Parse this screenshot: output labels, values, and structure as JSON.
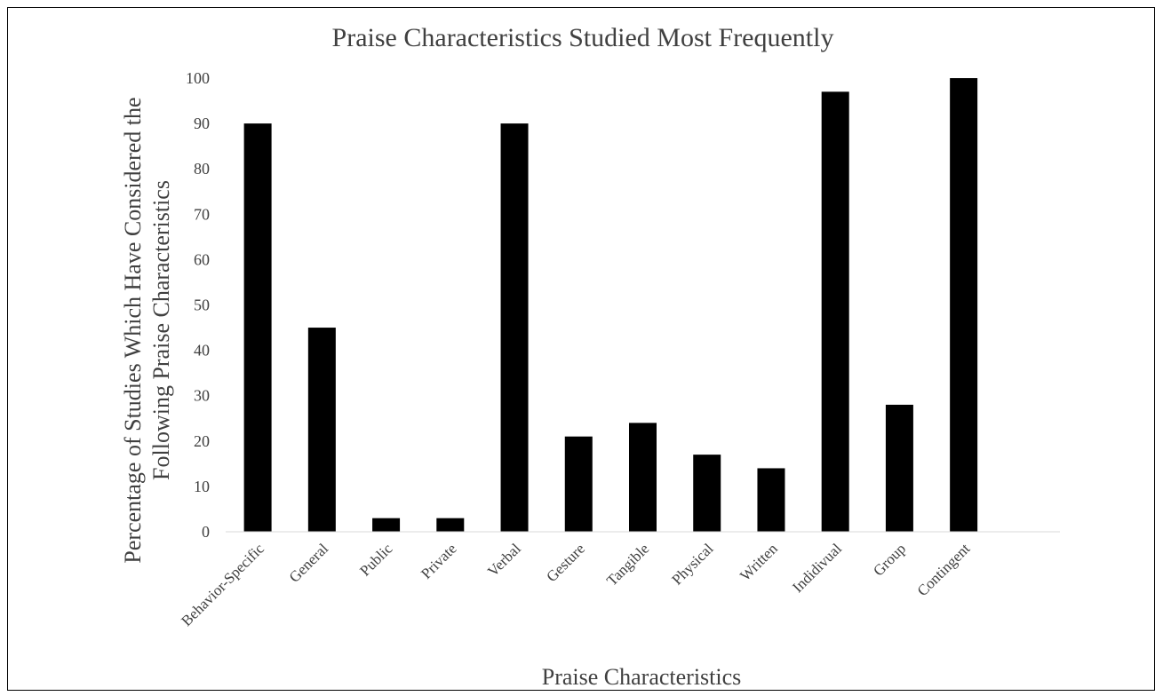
{
  "chart_data": {
    "type": "bar",
    "title": "Praise Characteristics Studied Most Frequently",
    "xlabel": "Praise Characteristics",
    "ylabel_lines": [
      "Percentage of Studies Which Have Considered  the",
      "Following Praise Characteristics"
    ],
    "categories": [
      "Behavior-Specific",
      "General",
      "Public",
      "Private",
      "Verbal",
      "Gesture",
      "Tangible",
      "Physical",
      "Written",
      "Indidivual",
      "Group",
      "Contingent"
    ],
    "values": [
      90,
      45,
      3,
      3,
      90,
      21,
      24,
      17,
      14,
      97,
      28,
      100
    ],
    "ylim": [
      0,
      100
    ],
    "yticks": [
      "0",
      "10",
      "20",
      "30",
      "40",
      "50",
      "60",
      "70",
      "80",
      "90",
      "100"
    ],
    "grid": false,
    "legend": false,
    "colors": {
      "bar": "#000000",
      "axis": "#d9d9d9",
      "text": "#404040"
    }
  }
}
